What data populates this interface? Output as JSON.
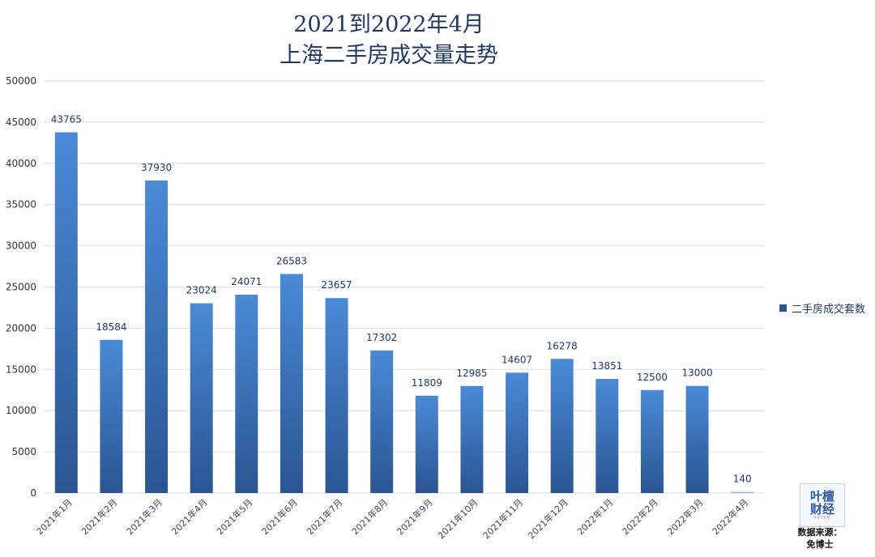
{
  "title": {
    "line1": "2021到2022年4月",
    "line2": "上海二手房成交量走势"
  },
  "legend": {
    "label": "二手房成交套数"
  },
  "logo": {
    "line1": "叶檀",
    "line2": "财经",
    "tiny": "YETAN"
  },
  "source": {
    "line1": "数据来源：",
    "line2": "免博士"
  },
  "colors": {
    "bar_top": "#4a8ad6",
    "bar_bottom": "#2a5592",
    "grid": "#d6dee9",
    "text": "#1f3864"
  },
  "chart_data": {
    "type": "bar",
    "title": "2021到2022年4月 上海二手房成交量走势",
    "xlabel": "",
    "ylabel": "",
    "ylim": [
      0,
      50000
    ],
    "yticks": [
      0,
      5000,
      10000,
      15000,
      20000,
      25000,
      30000,
      35000,
      40000,
      45000,
      50000
    ],
    "grid": true,
    "legend_position": "right",
    "categories": [
      "2021年1月",
      "2021年2月",
      "2021年3月",
      "2021年4月",
      "2021年5月",
      "2021年6月",
      "2021年7月",
      "2021年8月",
      "2021年9月",
      "2021年10月",
      "2021年11月",
      "2021年12月",
      "2022年1月",
      "2022年2月",
      "2022年3月",
      "2022年4月"
    ],
    "series": [
      {
        "name": "二手房成交套数",
        "values": [
          43765,
          18584,
          37930,
          23024,
          24071,
          26583,
          23657,
          17302,
          11809,
          12985,
          14607,
          16278,
          13851,
          12500,
          13000,
          140
        ]
      }
    ]
  }
}
